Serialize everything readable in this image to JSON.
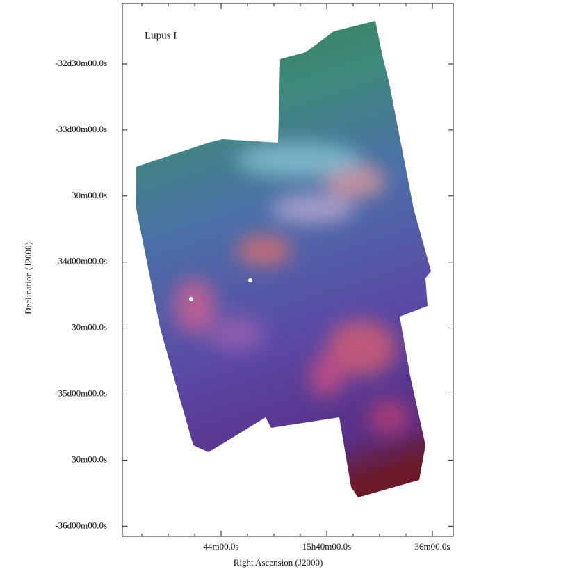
{
  "title": "Lupus I",
  "y_axis": {
    "label": "Declination (J2000)",
    "ticks": [
      "-32d30m00.0s",
      "-33d00m00.0s",
      "30m00.0s",
      "-34d00m00.0s",
      "30m00.0s",
      "-35d00m00.0s",
      "30m00.0s",
      "-36d00m00.0s"
    ]
  },
  "x_axis": {
    "label": "Right Ascension (J2000)",
    "ticks": [
      "44m00.0s",
      "15h40m00.0s",
      "36m00.0s"
    ]
  }
}
